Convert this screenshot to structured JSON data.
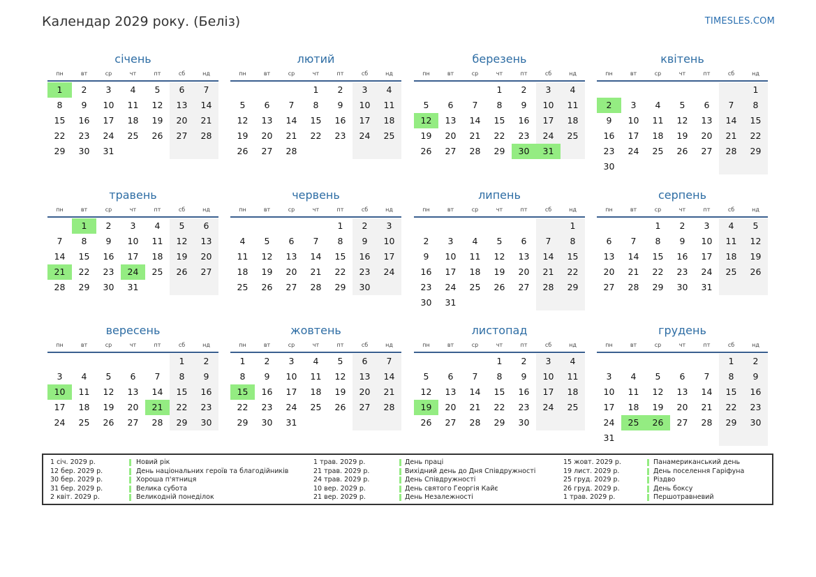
{
  "title": "Календар 2029 року. (Беліз)",
  "site": "TIMESLES.COM",
  "weekdays": [
    "пн",
    "вт",
    "ср",
    "чт",
    "пт",
    "сб",
    "нд"
  ],
  "colors": {
    "month_name": "#2e6da4",
    "holiday": "#94ec82",
    "weekend_bg": "#f2f2f2",
    "rule": "#3a5f8f"
  },
  "months": [
    {
      "name": "січень",
      "first_weekday": 1,
      "days": 31,
      "holidays": [
        1
      ]
    },
    {
      "name": "лютий",
      "first_weekday": 4,
      "days": 28,
      "holidays": []
    },
    {
      "name": "березень",
      "first_weekday": 4,
      "days": 31,
      "holidays": [
        12,
        30,
        31
      ]
    },
    {
      "name": "квітень",
      "first_weekday": 7,
      "days": 30,
      "holidays": [
        2
      ]
    },
    {
      "name": "травень",
      "first_weekday": 2,
      "days": 31,
      "holidays": [
        1,
        21,
        24
      ]
    },
    {
      "name": "червень",
      "first_weekday": 5,
      "days": 30,
      "holidays": []
    },
    {
      "name": "липень",
      "first_weekday": 7,
      "days": 31,
      "holidays": []
    },
    {
      "name": "серпень",
      "first_weekday": 3,
      "days": 31,
      "holidays": []
    },
    {
      "name": "вересень",
      "first_weekday": 6,
      "days": 30,
      "holidays": [
        10,
        21
      ]
    },
    {
      "name": "жовтень",
      "first_weekday": 1,
      "days": 31,
      "holidays": [
        15
      ]
    },
    {
      "name": "листопад",
      "first_weekday": 4,
      "days": 30,
      "holidays": [
        19
      ]
    },
    {
      "name": "грудень",
      "first_weekday": 6,
      "days": 31,
      "holidays": [
        25,
        26
      ]
    }
  ],
  "legend": [
    [
      {
        "date": "1 січ. 2029 р.",
        "name": "Новий рік"
      },
      {
        "date": "12 бер. 2029 р.",
        "name": "День національних героїв та благодійників"
      },
      {
        "date": "30 бер. 2029 р.",
        "name": "Хороша п'ятниця"
      },
      {
        "date": "31 бер. 2029 р.",
        "name": "Велика субота"
      },
      {
        "date": "2 квіт. 2029 р.",
        "name": "Великодній понеділок"
      }
    ],
    [
      {
        "date": "1 трав. 2029 р.",
        "name": "День праці"
      },
      {
        "date": "21 трав. 2029 р.",
        "name": "Вихідний день до Дня Співдружності"
      },
      {
        "date": "24 трав. 2029 р.",
        "name": "День Співдружності"
      },
      {
        "date": "10 вер. 2029 р.",
        "name": "День святого Георгія Кайє"
      },
      {
        "date": "21 вер. 2029 р.",
        "name": "День Незалежності"
      }
    ],
    [
      {
        "date": "15 жовт. 2029 р.",
        "name": "Панамериканський день"
      },
      {
        "date": "19 лист. 2029 р.",
        "name": "День поселення Гаріфуна"
      },
      {
        "date": "25 груд. 2029 р.",
        "name": "Різдво"
      },
      {
        "date": "26 груд. 2029 р.",
        "name": "День боксу"
      },
      {
        "date": "1 трав. 2029 р.",
        "name": "Першотравневий"
      }
    ]
  ]
}
